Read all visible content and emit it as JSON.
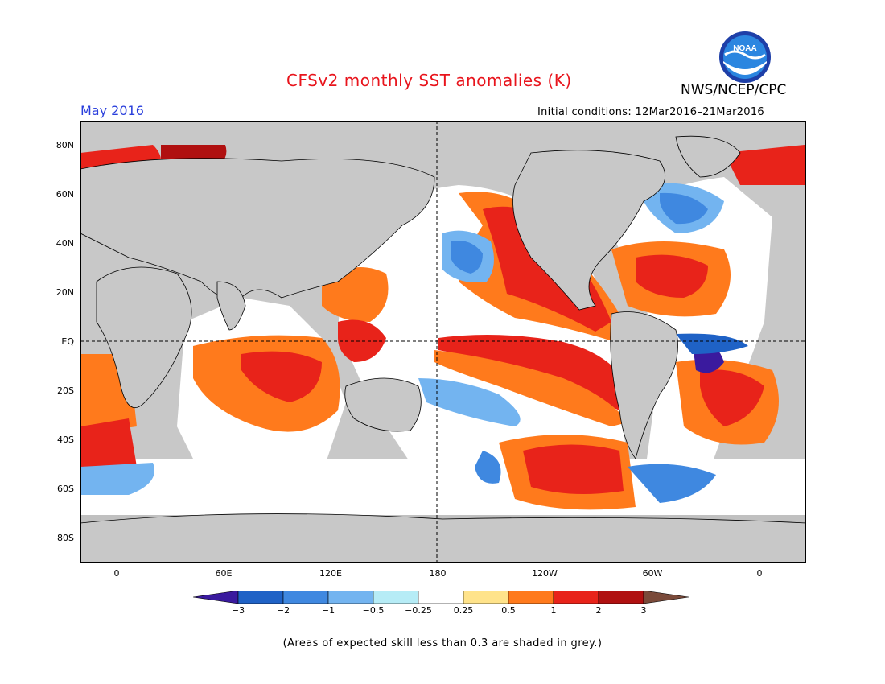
{
  "header": {
    "title": "CFSv2 monthly SST anomalies (K)",
    "org": "NWS/NCEP/CPC",
    "month": "May 2016",
    "initial_conditions": "Initial conditions: 12Mar2016–21Mar2016",
    "logo_text": "NOAA"
  },
  "map": {
    "lat_labels": [
      "80N",
      "60N",
      "40N",
      "20N",
      "EQ",
      "20S",
      "40S",
      "60S",
      "80S"
    ],
    "lon_labels": [
      "0",
      "60E",
      "120E",
      "180",
      "120W",
      "60W",
      "0"
    ],
    "land_color": "#c8c8c8",
    "grey_skill_color": "#c0c0c0"
  },
  "colorbar": {
    "ticks": [
      "−3",
      "−2",
      "−1",
      "−0.5",
      "−0.25",
      "0.25",
      "0.5",
      "1",
      "2",
      "3"
    ],
    "colors": [
      "#3a1a9e",
      "#1f62c6",
      "#3f88e0",
      "#73b4f0",
      "#b6ecf6",
      "#ffffff",
      "#ffe38a",
      "#ff7a1c",
      "#e8231a",
      "#b01010",
      "#7a4a3a"
    ],
    "below_color": "#3a1a9e",
    "above_color": "#7a4a3a"
  },
  "footnote": "(Areas of expected skill less than 0.3 are shaded in grey.)"
}
